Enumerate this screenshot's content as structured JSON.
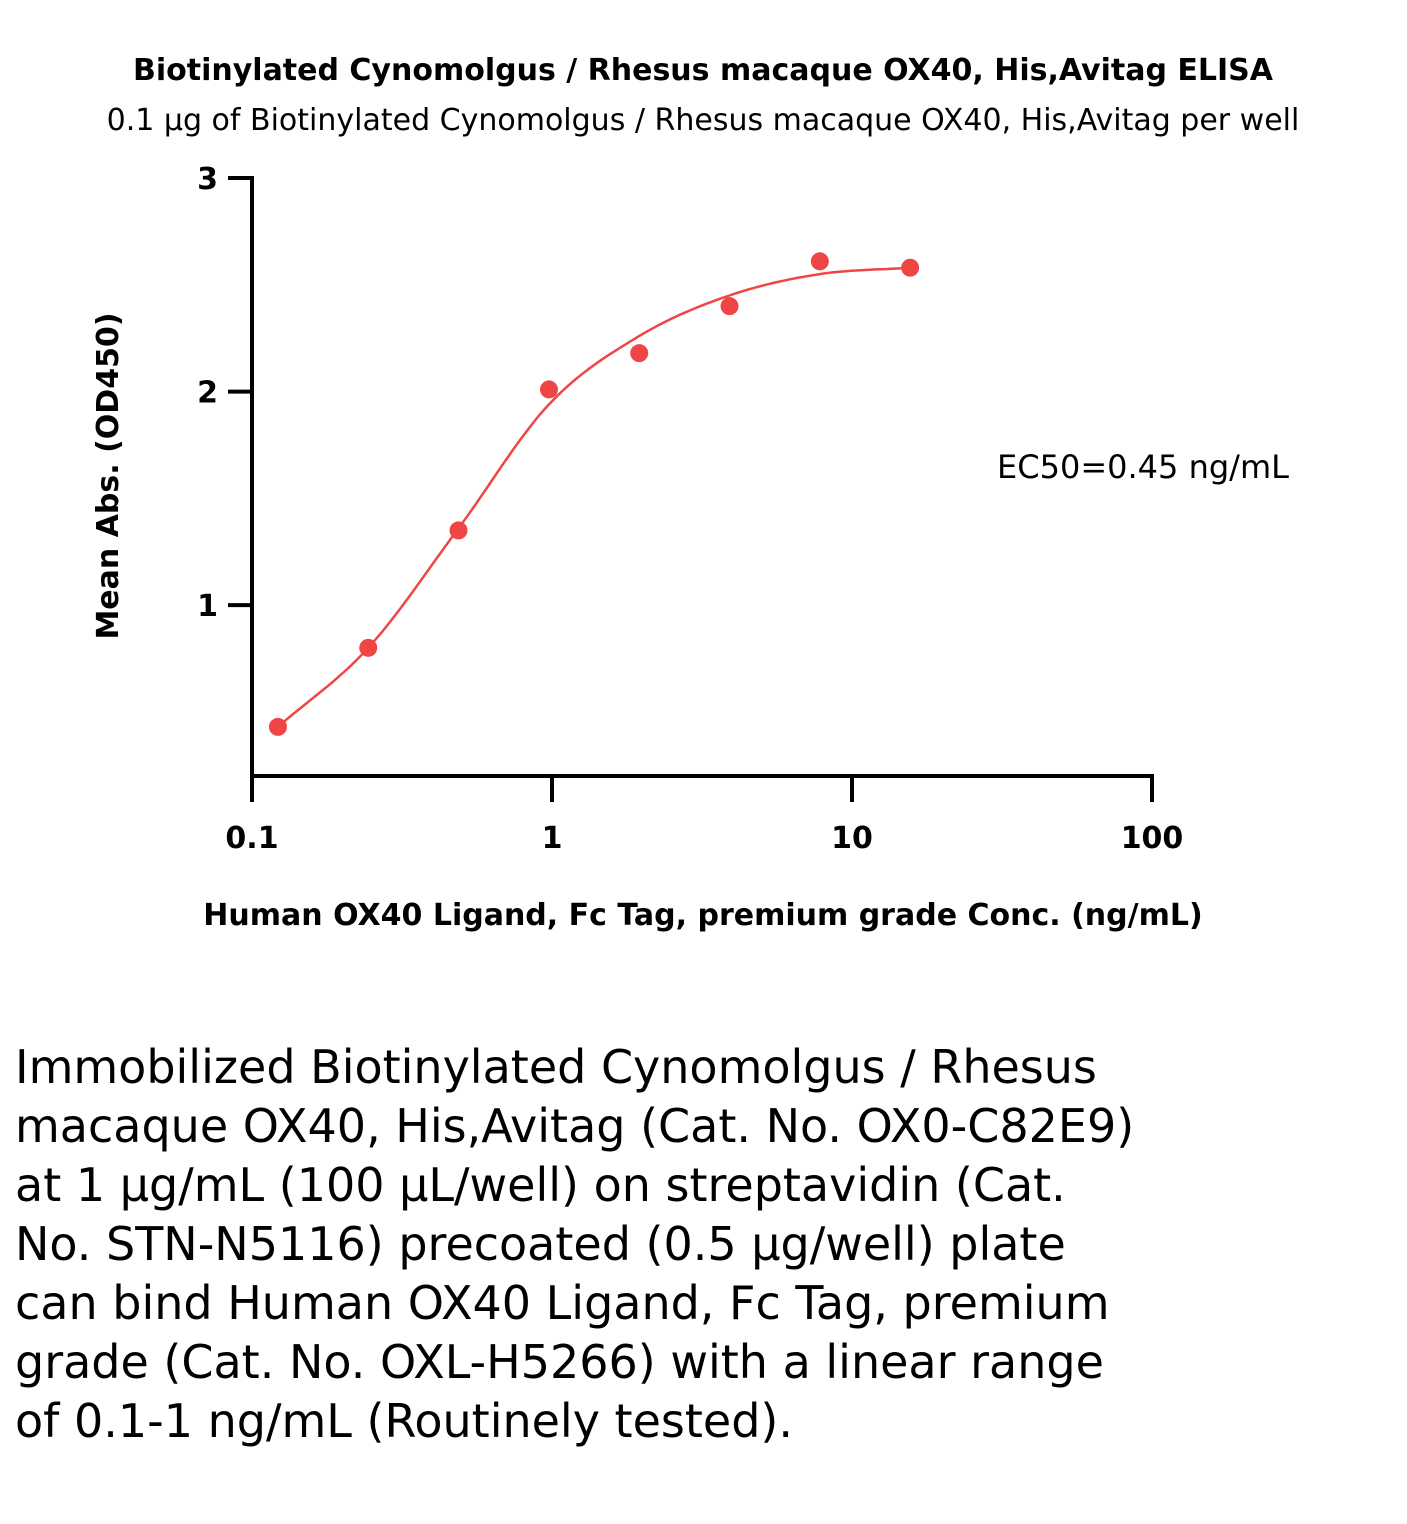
{
  "chart_data": {
    "type": "scatter",
    "title": "Biotinylated Cynomolgus / Rhesus macaque OX40, His,Avitag ELISA",
    "subtitle": "0.1 µg of Biotinylated Cynomolgus / Rhesus macaque OX40, His,Avitag per well",
    "xlabel": "Human OX40 Ligand, Fc Tag, premium grade Conc. (ng/mL)",
    "ylabel": "Mean Abs. (OD450)",
    "x_scale": "log",
    "xlim": [
      0.1,
      100
    ],
    "ylim": [
      0.2,
      3
    ],
    "x_ticks": [
      0.1,
      1,
      10,
      100
    ],
    "x_tick_labels": [
      "0.1",
      "1",
      "10",
      "100"
    ],
    "y_ticks": [
      1,
      2,
      3
    ],
    "y_tick_labels": [
      "1",
      "2",
      "3"
    ],
    "grid": false,
    "series": [
      {
        "x": [
          0.122,
          0.244,
          0.488,
          0.977,
          1.953,
          3.906,
          7.8125,
          15.625
        ],
        "y": [
          0.43,
          0.8,
          1.35,
          2.01,
          2.18,
          2.4,
          2.61,
          2.58
        ],
        "color": "#f04545",
        "fit": "4PL"
      }
    ],
    "annotations": [
      {
        "text": "EC50=0.45 ng/mL"
      }
    ]
  },
  "caption": "Immobilized Biotinylated Cynomolgus / Rhesus macaque OX40, His,Avitag (Cat. No. OX0-C82E9) at 1 µg/mL (100 µL/well) on streptavidin (Cat. No. STN-N5116) precoated (0.5 µg/well) plate can bind Human OX40 Ligand, Fc Tag, premium grade (Cat. No. OXL-H5266) with a linear range of 0.1-1 ng/mL (Routinely tested)."
}
